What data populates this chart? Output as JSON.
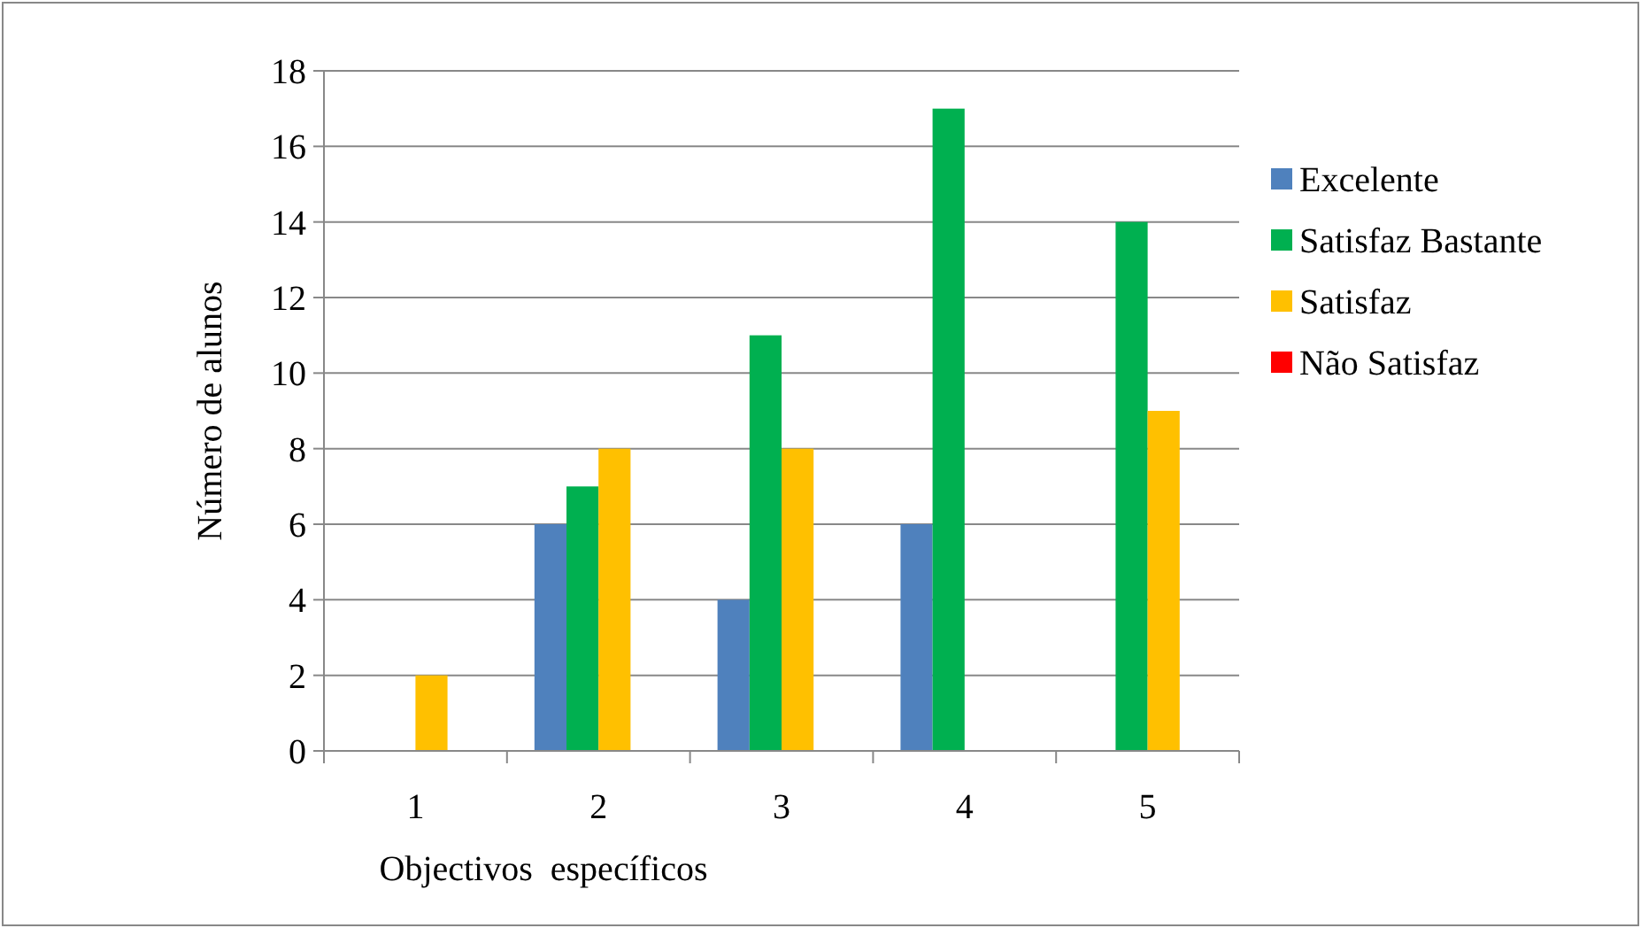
{
  "chart_data": {
    "type": "bar",
    "xlabel": "Objectivos  específicos",
    "ylabel": "Número de alunos",
    "categories": [
      "1",
      "2",
      "3",
      "4",
      "5"
    ],
    "series": [
      {
        "name": "Excelente",
        "color": "#4f81bd",
        "values": [
          0,
          6,
          4,
          6,
          0
        ]
      },
      {
        "name": "Satisfaz Bastante",
        "color": "#00b050",
        "values": [
          0,
          7,
          11,
          17,
          14
        ]
      },
      {
        "name": "Satisfaz",
        "color": "#ffc000",
        "values": [
          2,
          8,
          8,
          0,
          9
        ]
      },
      {
        "name": "Não Satisfaz",
        "color": "#ff0000",
        "values": [
          0,
          0,
          0,
          0,
          0
        ]
      }
    ],
    "ylim": [
      0,
      18
    ],
    "yticks": [
      0,
      2,
      4,
      6,
      8,
      10,
      12,
      14,
      16,
      18
    ],
    "grid": "y",
    "legend": "right"
  }
}
